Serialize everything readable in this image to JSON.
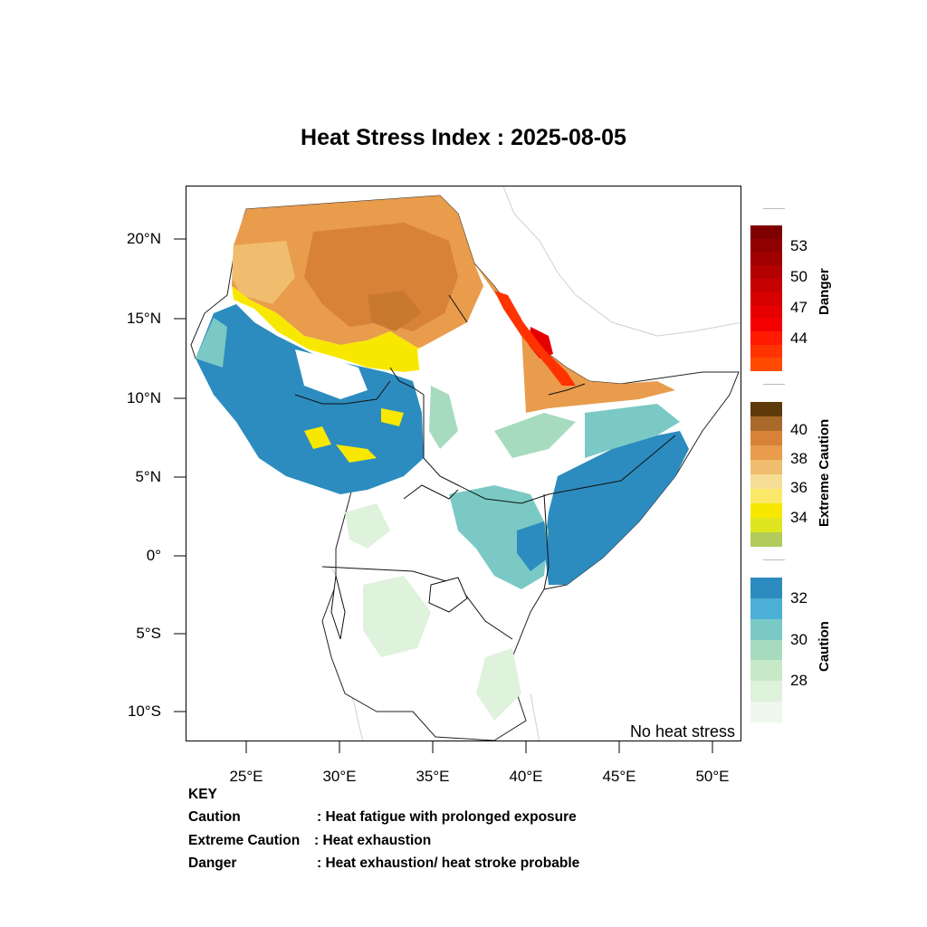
{
  "title": "Heat Stress Index : 2025-08-05",
  "map": {
    "lat_ticks": [
      "20°N",
      "15°N",
      "10°N",
      "5°N",
      "0°",
      "5°S",
      "10°S"
    ],
    "lon_ticks": [
      "25°E",
      "30°E",
      "35°E",
      "40°E",
      "45°E",
      "50°E"
    ],
    "no_heat_label": "No heat stress",
    "extent": {
      "lon": [
        22,
        51.5
      ],
      "lat": [
        -12,
        23
      ]
    }
  },
  "colorbars": [
    {
      "title": "Danger",
      "ticks": [
        "53",
        "50",
        "47",
        "44"
      ],
      "colors": [
        "#7f0000",
        "#8f0000",
        "#a00000",
        "#b30000",
        "#c40000",
        "#d50000",
        "#e60000",
        "#f40000",
        "#ff1a00",
        "#ff3300",
        "#ff4a00"
      ]
    },
    {
      "title": "Extreme Caution",
      "ticks": [
        "40",
        "38",
        "36",
        "34"
      ],
      "colors": [
        "#5e3a0b",
        "#a8692a",
        "#d88238",
        "#e89c4c",
        "#f0bd6e",
        "#f6dd95",
        "#fce96a",
        "#f8e800",
        "#dfe520",
        "#b2cb5a"
      ]
    },
    {
      "title": "Caution",
      "ticks": [
        "32",
        "30",
        "28"
      ],
      "colors": [
        "#2c8cbf",
        "#4cb0d6",
        "#7bc9c4",
        "#a6dbbf",
        "#c7e9c8",
        "#dff2dc",
        "#eef8ec"
      ]
    }
  ],
  "key": {
    "heading": "KEY",
    "rows": [
      {
        "name": "Caution",
        "desc": ": Heat fatigue with prolonged exposure"
      },
      {
        "name": "Extreme Caution",
        "desc": " : Heat exhaustion"
      },
      {
        "name": "Danger",
        "desc": ": Heat exhaustion/ heat stroke probable"
      }
    ]
  }
}
